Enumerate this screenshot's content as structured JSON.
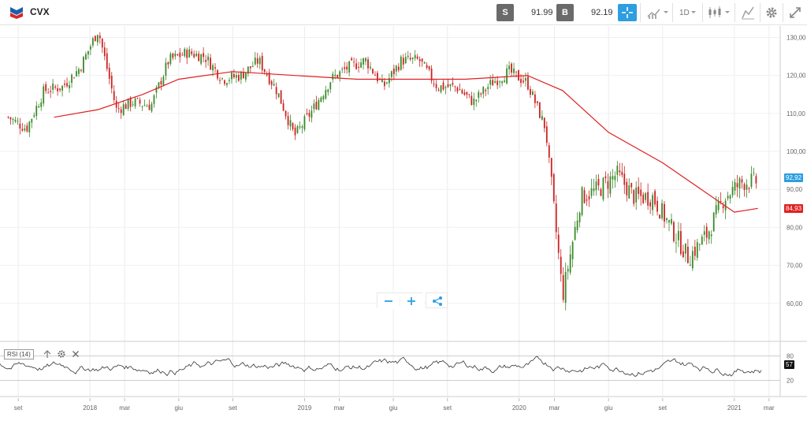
{
  "header": {
    "symbol": "CVX",
    "sell_label": "S",
    "sell_price": "91.99",
    "buy_label": "B",
    "buy_price": "92.19",
    "timeframe": "1D"
  },
  "icons": {
    "logo": "chevron-logo-icon",
    "crosshair": "crosshair-icon",
    "chart_type": "chart-style-icon",
    "candles": "candlestick-icon",
    "draw": "draw-tool-icon",
    "settings": "gear-icon",
    "fullscreen": "expand-icon",
    "zoom_out": "minus-icon",
    "zoom_in": "plus-icon",
    "share": "share-icon"
  },
  "colors": {
    "accent": "#2d9ee0",
    "candle_up": "#3a8a2a",
    "candle_down": "#cc2222",
    "moving_average": "#e02020",
    "logo_blue": "#1b5faa",
    "logo_red": "#d9262c"
  },
  "price_tag": "92,92",
  "ma_tag": "84,93",
  "rsi_tag": "57",
  "rsi_label": "RSI (14)",
  "chart_data": {
    "type": "candlestick",
    "x_ticks": [
      "set",
      "2018",
      "mar",
      "giu",
      "set",
      "2019",
      "mar",
      "giu",
      "set",
      "2020",
      "mar",
      "giu",
      "set",
      "2021",
      "mar"
    ],
    "y_ticks": [
      "130,00",
      "120,00",
      "110,00",
      "100,00",
      "90,00",
      "80,00",
      "70,00",
      "60,00"
    ],
    "ylim": [
      50,
      133
    ],
    "price_path": [
      [
        "2017-08-15",
        109
      ],
      [
        "2017-09-15",
        106
      ],
      [
        "2017-10-15",
        116
      ],
      [
        "2017-11-15",
        117
      ],
      [
        "2017-12-15",
        122
      ],
      [
        "2018-01-15",
        132
      ],
      [
        "2018-02-15",
        111
      ],
      [
        "2018-03-15",
        113
      ],
      [
        "2018-04-15",
        112
      ],
      [
        "2018-05-15",
        124
      ],
      [
        "2018-06-15",
        126
      ],
      [
        "2018-07-15",
        125
      ],
      [
        "2018-08-15",
        119
      ],
      [
        "2018-09-15",
        120
      ],
      [
        "2018-10-15",
        124
      ],
      [
        "2018-11-15",
        116
      ],
      [
        "2018-12-15",
        104
      ],
      [
        "2019-01-15",
        111
      ],
      [
        "2019-02-15",
        119
      ],
      [
        "2019-03-15",
        122
      ],
      [
        "2019-04-15",
        124
      ],
      [
        "2019-05-15",
        117
      ],
      [
        "2019-06-15",
        124
      ],
      [
        "2019-07-15",
        124
      ],
      [
        "2019-08-15",
        117
      ],
      [
        "2019-09-15",
        117
      ],
      [
        "2019-10-15",
        113
      ],
      [
        "2019-11-15",
        118
      ],
      [
        "2019-12-15",
        121
      ],
      [
        "2020-01-15",
        118
      ],
      [
        "2020-02-15",
        106
      ],
      [
        "2020-03-15",
        62
      ],
      [
        "2020-04-15",
        88
      ],
      [
        "2020-05-15",
        90
      ],
      [
        "2020-06-15",
        94
      ],
      [
        "2020-07-15",
        88
      ],
      [
        "2020-08-15",
        88
      ],
      [
        "2020-09-15",
        80
      ],
      [
        "2020-10-15",
        72
      ],
      [
        "2020-11-15",
        78
      ],
      [
        "2020-12-15",
        88
      ],
      [
        "2021-01-15",
        92
      ],
      [
        "2021-02-10",
        92
      ]
    ],
    "moving_average": [
      [
        "2017-11-01",
        109
      ],
      [
        "2018-01-15",
        111
      ],
      [
        "2018-04-01",
        115
      ],
      [
        "2018-06-01",
        119
      ],
      [
        "2018-09-01",
        121
      ],
      [
        "2018-12-15",
        120
      ],
      [
        "2019-04-01",
        119
      ],
      [
        "2019-07-01",
        119
      ],
      [
        "2019-10-01",
        119
      ],
      [
        "2020-01-15",
        120
      ],
      [
        "2020-03-15",
        116
      ],
      [
        "2020-06-01",
        105
      ],
      [
        "2020-09-01",
        97
      ],
      [
        "2020-11-15",
        89
      ],
      [
        "2021-01-01",
        84
      ],
      [
        "2021-02-10",
        85
      ]
    ],
    "rsi": {
      "label": "RSI (14)",
      "ticks": [
        "80",
        "20"
      ],
      "ylim": [
        0,
        100
      ],
      "last": 57
    }
  }
}
